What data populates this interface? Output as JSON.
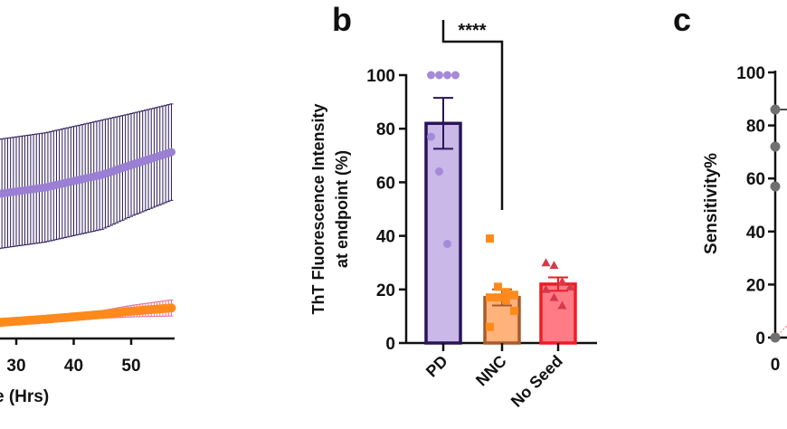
{
  "chart_data": [
    {
      "panel": "",
      "type": "line",
      "xlabel_visible": "e (Hrs)",
      "x_ticks": [
        "30",
        "40",
        "50"
      ],
      "xlim": [
        27,
        57
      ],
      "note_colors": {
        "PD": "#9b7fd4",
        "NNC": "#ff8a1c",
        "No Seed": "#e06080"
      },
      "series": [
        {
          "color": "#9b7fd4",
          "errcolor": "#2a1a5a",
          "x": [
            27,
            35,
            45,
            50,
            57
          ],
          "y": [
            60,
            62,
            66,
            69,
            73
          ],
          "err": [
            17,
            17,
            17,
            16,
            15
          ]
        },
        {
          "color": "#ff8a1c",
          "errcolor": "#e0709a",
          "x": [
            27,
            35,
            45,
            50,
            57
          ],
          "y": [
            20,
            21,
            22.5,
            23.5,
            24.5
          ],
          "err": [
            1,
            1,
            1.2,
            1.8,
            2.5
          ]
        }
      ],
      "ylim": [
        15,
        95
      ]
    },
    {
      "panel": "b",
      "type": "bar",
      "ylabel": [
        "ThT Fluorescence Intensity",
        "at endpoint (%)"
      ],
      "categories": [
        "PD",
        "NNC",
        "No Seed"
      ],
      "values": [
        82,
        17,
        22
      ],
      "sem": [
        9.5,
        3,
        2.5
      ],
      "ylim": [
        0,
        100
      ],
      "y_ticks": [
        "0",
        "20",
        "40",
        "60",
        "80",
        "100"
      ],
      "points": [
        [
          100,
          100,
          100,
          100,
          77,
          64,
          37
        ],
        [
          39,
          21,
          19,
          18,
          17,
          17,
          16,
          12,
          6
        ],
        [
          30,
          29,
          23,
          21,
          20,
          17,
          14
        ]
      ],
      "fill": [
        "#c9b8e8",
        "#ffb27a",
        "#ff7b86"
      ],
      "edge": [
        "#2a1459",
        "#a85a2a",
        "#ee1c25"
      ],
      "marker_color": [
        "#a68ad8",
        "#ff8a1c",
        "#d63a4a"
      ],
      "significance": "****"
    },
    {
      "panel": "c",
      "type": "scatter",
      "ylabel": "Sensitivity%",
      "y_ticks": [
        "0",
        "20",
        "40",
        "60",
        "80",
        "100"
      ],
      "x_ticks": [
        "0"
      ],
      "ylim": [
        0,
        100
      ],
      "points_x": [
        0,
        0,
        0,
        0
      ],
      "points_y": [
        86,
        72,
        57,
        0
      ],
      "marker_color": "#707070"
    }
  ]
}
